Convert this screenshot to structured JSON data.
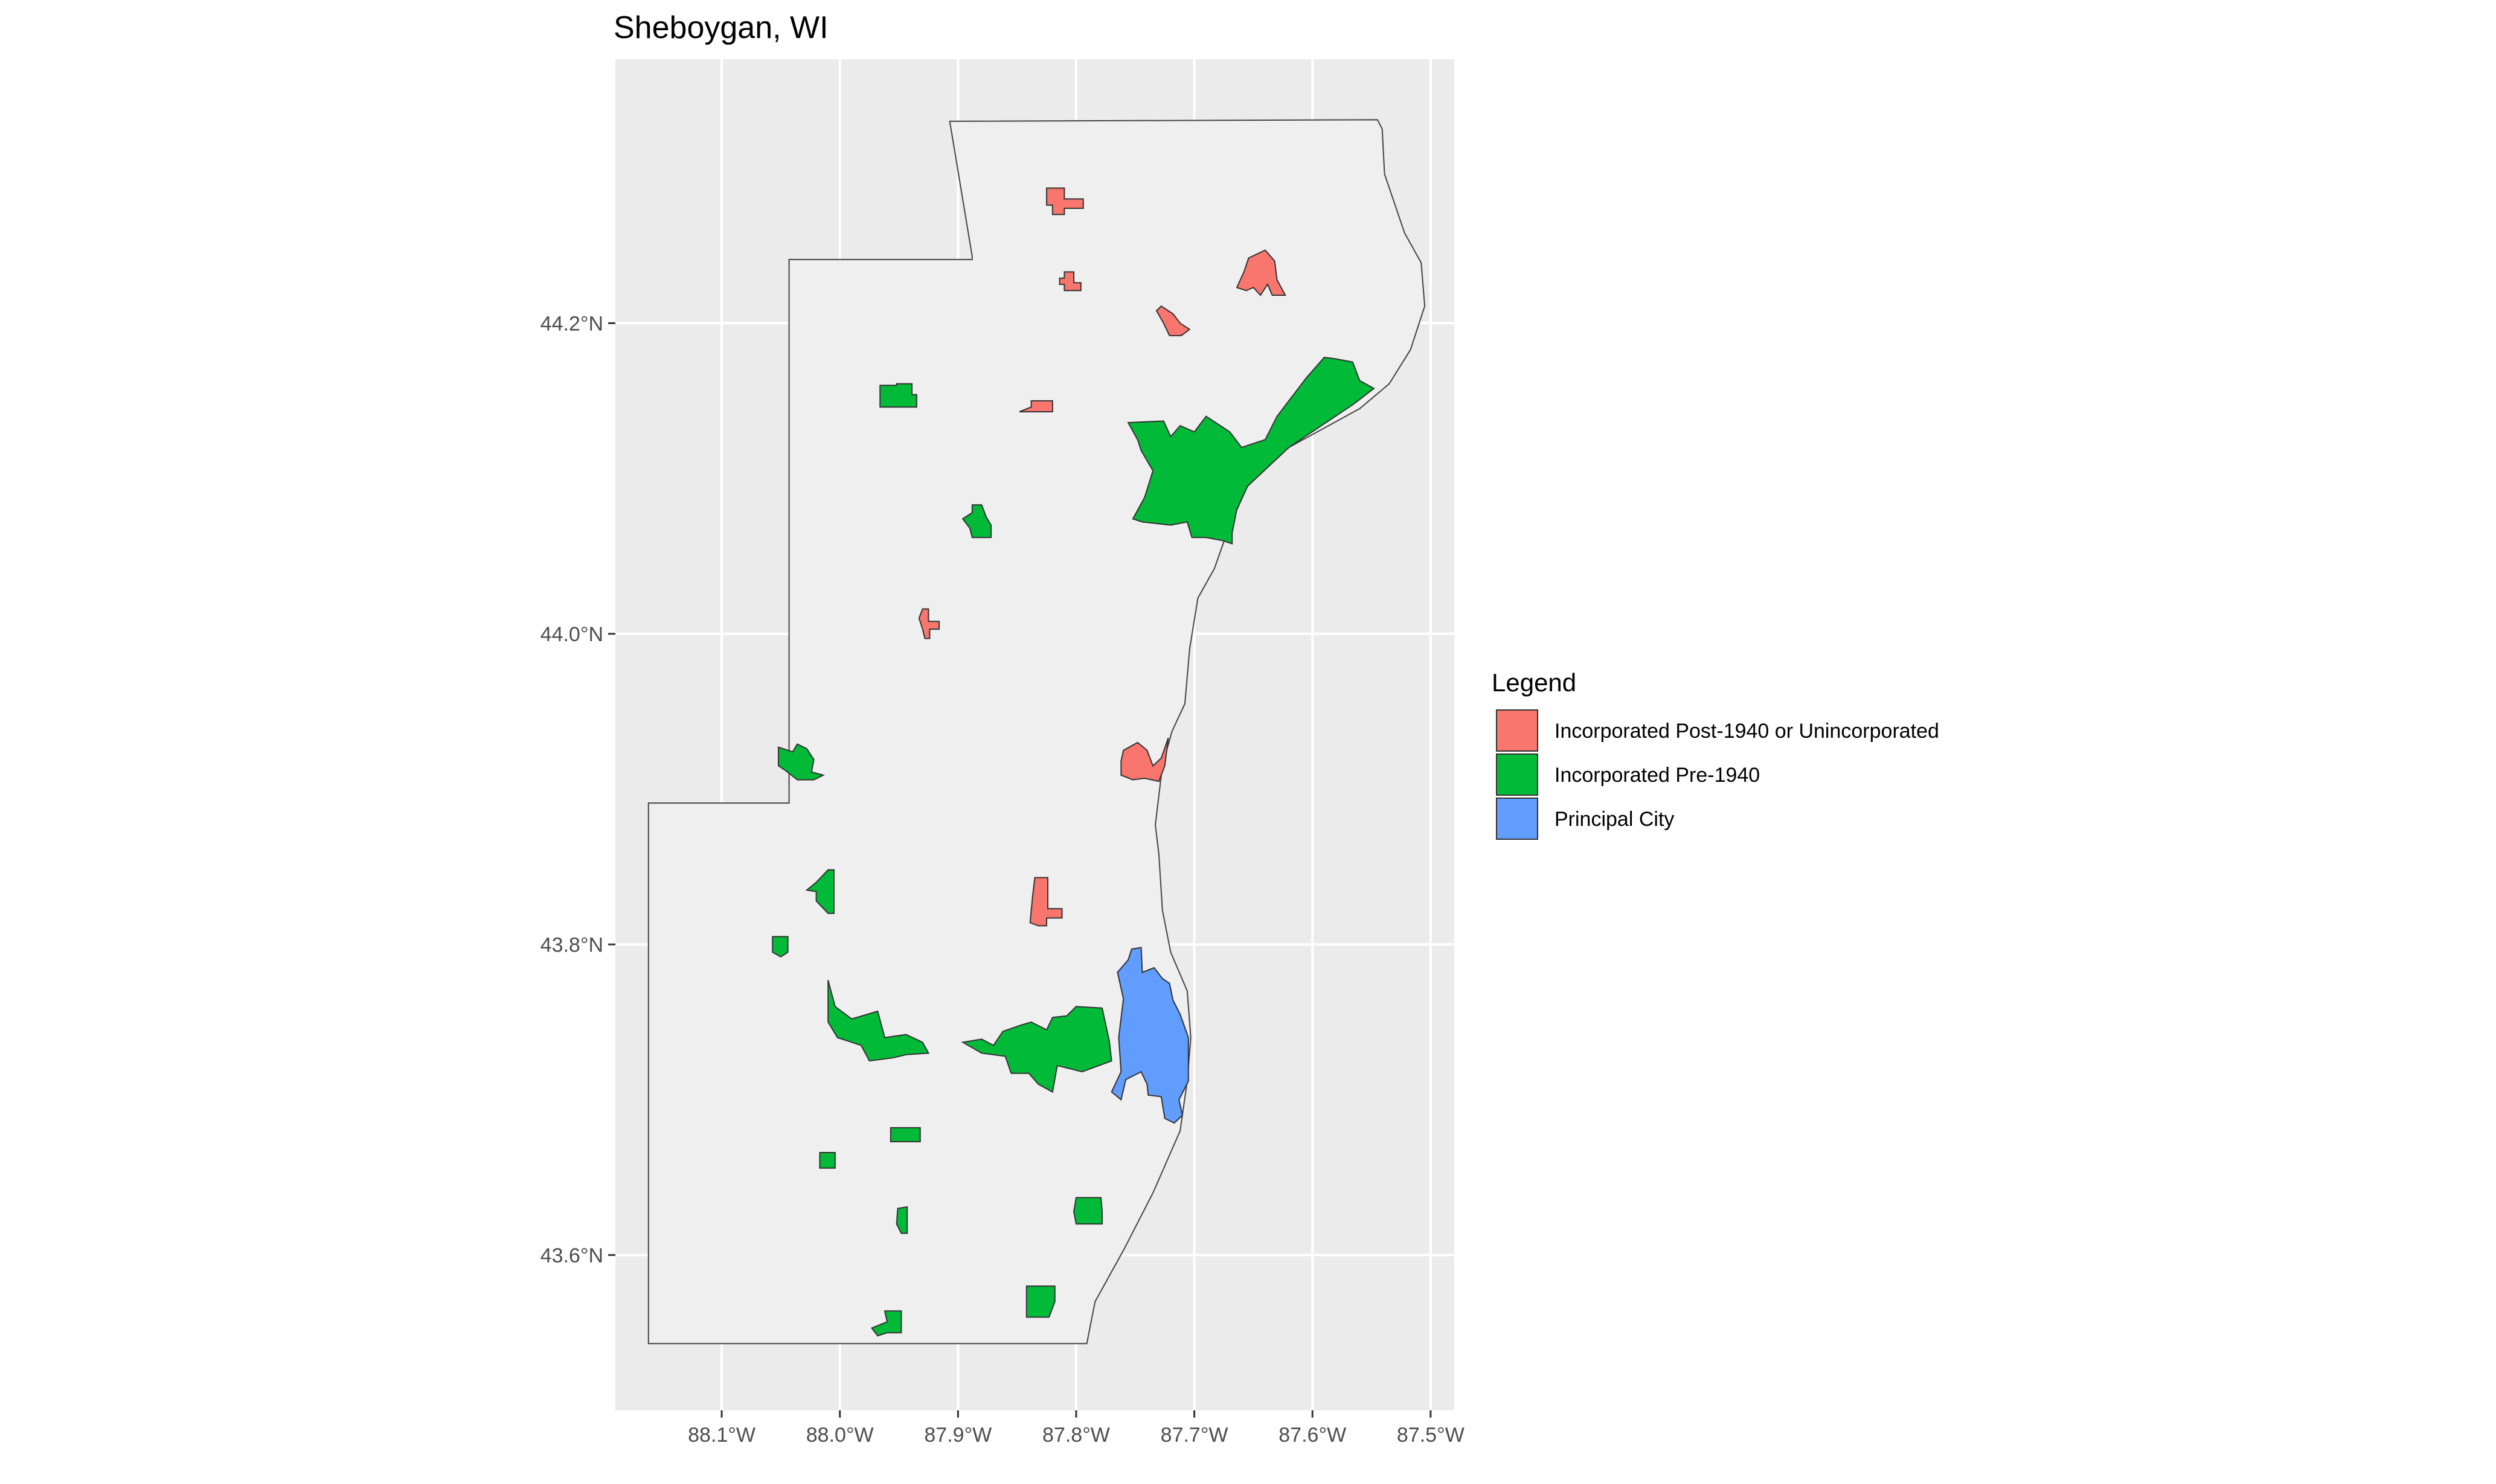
{
  "title": "Sheboygan, WI",
  "colors": {
    "panel": "#ebebeb",
    "county_fill": "#efefef",
    "county_stroke": "#444444",
    "post1940": "#f8766d",
    "pre1940": "#00ba38",
    "principal": "#619cff"
  },
  "axes": {
    "x_range": [
      -88.19,
      -87.48
    ],
    "y_range": [
      43.5,
      44.37
    ],
    "x_ticks": [
      {
        "value": -88.1,
        "label": "88.1°W"
      },
      {
        "value": -88.0,
        "label": "88.0°W"
      },
      {
        "value": -87.9,
        "label": "87.9°W"
      },
      {
        "value": -87.8,
        "label": "87.8°W"
      },
      {
        "value": -87.7,
        "label": "87.7°W"
      },
      {
        "value": -87.6,
        "label": "87.6°W"
      },
      {
        "value": -87.5,
        "label": "87.5°W"
      }
    ],
    "y_ticks": [
      {
        "value": 44.2,
        "label": "44.2°N"
      },
      {
        "value": 44.0,
        "label": "44.0°N"
      },
      {
        "value": 43.8,
        "label": "43.8°N"
      },
      {
        "value": 43.6,
        "label": "43.6°N"
      }
    ]
  },
  "legend": {
    "title": "Legend",
    "items": [
      {
        "key": "post1940",
        "label": "Incorporated Post-1940 or Unincorporated"
      },
      {
        "key": "pre1940",
        "label": "Incorporated Pre-1940"
      },
      {
        "key": "principal",
        "label": "Principal City"
      }
    ]
  },
  "county_boundary": [
    [
      -87.907,
      44.33
    ],
    [
      -87.545,
      44.331
    ],
    [
      -87.541,
      44.325
    ],
    [
      -87.539,
      44.296
    ],
    [
      -87.522,
      44.258
    ],
    [
      -87.508,
      44.239
    ],
    [
      -87.505,
      44.211
    ],
    [
      -87.517,
      44.183
    ],
    [
      -87.535,
      44.161
    ],
    [
      -87.56,
      44.145
    ],
    [
      -87.62,
      44.12
    ],
    [
      -87.655,
      44.095
    ],
    [
      -87.671,
      44.068
    ],
    [
      -87.683,
      44.042
    ],
    [
      -87.697,
      44.023
    ],
    [
      -87.704,
      43.99
    ],
    [
      -87.708,
      43.955
    ],
    [
      -87.719,
      43.937
    ],
    [
      -87.727,
      43.915
    ],
    [
      -87.733,
      43.877
    ],
    [
      -87.73,
      43.858
    ],
    [
      -87.727,
      43.822
    ],
    [
      -87.72,
      43.795
    ],
    [
      -87.706,
      43.77
    ],
    [
      -87.703,
      43.74
    ],
    [
      -87.706,
      43.712
    ],
    [
      -87.712,
      43.68
    ],
    [
      -87.735,
      43.64
    ],
    [
      -87.76,
      43.603
    ],
    [
      -87.784,
      43.57
    ],
    [
      -87.791,
      43.543
    ],
    [
      -88.162,
      43.543
    ],
    [
      -88.162,
      43.891
    ],
    [
      -88.043,
      43.891
    ],
    [
      -88.043,
      44.241
    ],
    [
      -87.888,
      44.241
    ],
    [
      -87.888,
      44.243
    ]
  ],
  "places": [
    {
      "cat": "post1940",
      "poly": [
        [
          -87.825,
          44.287
        ],
        [
          -87.81,
          44.287
        ],
        [
          -87.81,
          44.28
        ],
        [
          -87.794,
          44.28
        ],
        [
          -87.794,
          44.274
        ],
        [
          -87.81,
          44.274
        ],
        [
          -87.81,
          44.27
        ],
        [
          -87.82,
          44.27
        ],
        [
          -87.82,
          44.276
        ],
        [
          -87.825,
          44.276
        ]
      ]
    },
    {
      "cat": "post1940",
      "poly": [
        [
          -87.81,
          44.233
        ],
        [
          -87.802,
          44.233
        ],
        [
          -87.802,
          44.226
        ],
        [
          -87.796,
          44.226
        ],
        [
          -87.796,
          44.221
        ],
        [
          -87.81,
          44.221
        ],
        [
          -87.81,
          44.225
        ],
        [
          -87.814,
          44.225
        ],
        [
          -87.814,
          44.229
        ],
        [
          -87.81,
          44.229
        ]
      ]
    },
    {
      "cat": "post1940",
      "poly": [
        [
          -87.654,
          44.242
        ],
        [
          -87.64,
          44.247
        ],
        [
          -87.632,
          44.24
        ],
        [
          -87.63,
          44.228
        ],
        [
          -87.623,
          44.218
        ],
        [
          -87.634,
          44.218
        ],
        [
          -87.638,
          44.225
        ],
        [
          -87.644,
          44.218
        ],
        [
          -87.65,
          44.223
        ],
        [
          -87.656,
          44.221
        ],
        [
          -87.664,
          44.223
        ],
        [
          -87.658,
          44.233
        ]
      ]
    },
    {
      "cat": "post1940",
      "poly": [
        [
          -87.728,
          44.211
        ],
        [
          -87.718,
          44.206
        ],
        [
          -87.712,
          44.2
        ],
        [
          -87.704,
          44.196
        ],
        [
          -87.711,
          44.192
        ],
        [
          -87.721,
          44.192
        ],
        [
          -87.726,
          44.2
        ],
        [
          -87.732,
          44.208
        ]
      ]
    },
    {
      "cat": "post1940",
      "poly": [
        [
          -87.838,
          44.15
        ],
        [
          -87.82,
          44.15
        ],
        [
          -87.82,
          44.143
        ],
        [
          -87.848,
          44.143
        ],
        [
          -87.838,
          44.146
        ]
      ]
    },
    {
      "cat": "post1940",
      "poly": [
        [
          -87.93,
          44.016
        ],
        [
          -87.925,
          44.016
        ],
        [
          -87.925,
          44.008
        ],
        [
          -87.916,
          44.008
        ],
        [
          -87.916,
          44.003
        ],
        [
          -87.924,
          44.003
        ],
        [
          -87.924,
          43.997
        ],
        [
          -87.928,
          43.997
        ],
        [
          -87.93,
          44.003
        ],
        [
          -87.933,
          44.01
        ]
      ]
    },
    {
      "cat": "post1940",
      "poly": [
        [
          -87.76,
          43.925
        ],
        [
          -87.748,
          43.93
        ],
        [
          -87.74,
          43.925
        ],
        [
          -87.735,
          43.915
        ],
        [
          -87.728,
          43.92
        ],
        [
          -87.722,
          43.933
        ],
        [
          -87.725,
          43.915
        ],
        [
          -87.73,
          43.905
        ],
        [
          -87.742,
          43.907
        ],
        [
          -87.752,
          43.906
        ],
        [
          -87.762,
          43.909
        ],
        [
          -87.762,
          43.918
        ]
      ]
    },
    {
      "cat": "post1940",
      "poly": [
        [
          -87.835,
          43.843
        ],
        [
          -87.824,
          43.843
        ],
        [
          -87.824,
          43.823
        ],
        [
          -87.812,
          43.823
        ],
        [
          -87.812,
          43.817
        ],
        [
          -87.825,
          43.817
        ],
        [
          -87.825,
          43.812
        ],
        [
          -87.832,
          43.812
        ],
        [
          -87.839,
          43.814
        ],
        [
          -87.837,
          43.83
        ]
      ]
    },
    {
      "cat": "pre1940",
      "poly": [
        [
          -87.952,
          44.161
        ],
        [
          -87.939,
          44.161
        ],
        [
          -87.939,
          44.154
        ],
        [
          -87.935,
          44.154
        ],
        [
          -87.935,
          44.146
        ],
        [
          -87.966,
          44.146
        ],
        [
          -87.966,
          44.16
        ],
        [
          -87.952,
          44.16
        ]
      ]
    },
    {
      "cat": "pre1940",
      "poly": [
        [
          -87.888,
          44.083
        ],
        [
          -87.88,
          44.083
        ],
        [
          -87.876,
          44.075
        ],
        [
          -87.872,
          44.07
        ],
        [
          -87.872,
          44.062
        ],
        [
          -87.888,
          44.062
        ],
        [
          -87.89,
          44.068
        ],
        [
          -87.896,
          44.074
        ],
        [
          -87.888,
          44.078
        ]
      ]
    },
    {
      "cat": "pre1940",
      "poly": [
        [
          -87.756,
          44.136
        ],
        [
          -87.726,
          44.137
        ],
        [
          -87.72,
          44.127
        ],
        [
          -87.712,
          44.134
        ],
        [
          -87.7,
          44.13
        ],
        [
          -87.69,
          44.14
        ],
        [
          -87.67,
          44.13
        ],
        [
          -87.66,
          44.12
        ],
        [
          -87.64,
          44.125
        ],
        [
          -87.63,
          44.14
        ],
        [
          -87.615,
          44.155
        ],
        [
          -87.605,
          44.165
        ],
        [
          -87.59,
          44.178
        ],
        [
          -87.58,
          44.177
        ],
        [
          -87.566,
          44.175
        ],
        [
          -87.56,
          44.163
        ],
        [
          -87.548,
          44.158
        ],
        [
          -87.565,
          44.148
        ],
        [
          -87.62,
          44.12
        ],
        [
          -87.655,
          44.095
        ],
        [
          -87.664,
          44.08
        ],
        [
          -87.668,
          44.065
        ],
        [
          -87.668,
          44.058
        ],
        [
          -87.676,
          44.06
        ],
        [
          -87.69,
          44.062
        ],
        [
          -87.702,
          44.062
        ],
        [
          -87.706,
          44.072
        ],
        [
          -87.72,
          44.07
        ],
        [
          -87.744,
          44.072
        ],
        [
          -87.752,
          44.074
        ],
        [
          -87.742,
          44.088
        ],
        [
          -87.735,
          44.105
        ],
        [
          -87.745,
          44.118
        ],
        [
          -87.748,
          44.125
        ]
      ]
    },
    {
      "cat": "pre1940",
      "poly": [
        [
          -88.052,
          43.927
        ],
        [
          -88.04,
          43.924
        ],
        [
          -88.036,
          43.929
        ],
        [
          -88.028,
          43.926
        ],
        [
          -88.022,
          43.919
        ],
        [
          -88.024,
          43.911
        ],
        [
          -88.014,
          43.909
        ],
        [
          -88.022,
          43.906
        ],
        [
          -88.036,
          43.906
        ],
        [
          -88.046,
          43.912
        ],
        [
          -88.052,
          43.915
        ]
      ]
    },
    {
      "cat": "pre1940",
      "poly": [
        [
          -88.01,
          43.848
        ],
        [
          -88.005,
          43.848
        ],
        [
          -88.005,
          43.82
        ],
        [
          -88.01,
          43.82
        ],
        [
          -88.02,
          43.828
        ],
        [
          -88.02,
          43.834
        ],
        [
          -88.028,
          43.835
        ],
        [
          -88.02,
          43.84
        ]
      ]
    },
    {
      "cat": "pre1940",
      "poly": [
        [
          -88.057,
          43.805
        ],
        [
          -88.044,
          43.805
        ],
        [
          -88.044,
          43.795
        ],
        [
          -88.05,
          43.792
        ],
        [
          -88.057,
          43.795
        ]
      ]
    },
    {
      "cat": "pre1940",
      "poly": [
        [
          -88.01,
          43.777
        ],
        [
          -88.004,
          43.76
        ],
        [
          -87.99,
          43.752
        ],
        [
          -87.968,
          43.757
        ],
        [
          -87.962,
          43.74
        ],
        [
          -87.944,
          43.742
        ],
        [
          -87.93,
          43.737
        ],
        [
          -87.925,
          43.73
        ],
        [
          -87.944,
          43.729
        ],
        [
          -87.955,
          43.727
        ],
        [
          -87.975,
          43.725
        ],
        [
          -87.982,
          43.735
        ],
        [
          -88.002,
          43.74
        ],
        [
          -88.01,
          43.75
        ]
      ]
    },
    {
      "cat": "pre1940",
      "poly": [
        [
          -87.896,
          43.737
        ],
        [
          -87.88,
          43.739
        ],
        [
          -87.87,
          43.735
        ],
        [
          -87.862,
          43.744
        ],
        [
          -87.847,
          43.748
        ],
        [
          -87.838,
          43.75
        ],
        [
          -87.825,
          43.745
        ],
        [
          -87.82,
          43.753
        ],
        [
          -87.808,
          43.754
        ],
        [
          -87.8,
          43.76
        ],
        [
          -87.778,
          43.759
        ],
        [
          -87.772,
          43.738
        ],
        [
          -87.77,
          43.725
        ],
        [
          -87.795,
          43.718
        ],
        [
          -87.816,
          43.722
        ],
        [
          -87.82,
          43.705
        ],
        [
          -87.832,
          43.71
        ],
        [
          -87.84,
          43.717
        ],
        [
          -87.855,
          43.717
        ],
        [
          -87.86,
          43.728
        ],
        [
          -87.88,
          43.73
        ]
      ]
    },
    {
      "cat": "pre1940",
      "poly": [
        [
          -87.957,
          43.682
        ],
        [
          -87.932,
          43.682
        ],
        [
          -87.932,
          43.673
        ],
        [
          -87.957,
          43.673
        ]
      ]
    },
    {
      "cat": "pre1940",
      "poly": [
        [
          -88.017,
          43.666
        ],
        [
          -88.004,
          43.666
        ],
        [
          -88.004,
          43.656
        ],
        [
          -88.017,
          43.656
        ]
      ]
    },
    {
      "cat": "pre1940",
      "poly": [
        [
          -87.951,
          43.63
        ],
        [
          -87.943,
          43.631
        ],
        [
          -87.943,
          43.614
        ],
        [
          -87.948,
          43.614
        ],
        [
          -87.952,
          43.62
        ]
      ]
    },
    {
      "cat": "pre1940",
      "poly": [
        [
          -87.8,
          43.637
        ],
        [
          -87.779,
          43.637
        ],
        [
          -87.778,
          43.628
        ],
        [
          -87.778,
          43.62
        ],
        [
          -87.8,
          43.62
        ],
        [
          -87.802,
          43.628
        ]
      ]
    },
    {
      "cat": "pre1940",
      "poly": [
        [
          -87.842,
          43.58
        ],
        [
          -87.818,
          43.58
        ],
        [
          -87.818,
          43.57
        ],
        [
          -87.823,
          43.56
        ],
        [
          -87.842,
          43.56
        ]
      ]
    },
    {
      "cat": "pre1940",
      "poly": [
        [
          -87.962,
          43.564
        ],
        [
          -87.948,
          43.564
        ],
        [
          -87.948,
          43.55
        ],
        [
          -87.96,
          43.55
        ],
        [
          -87.968,
          43.548
        ],
        [
          -87.973,
          43.553
        ],
        [
          -87.96,
          43.557
        ]
      ]
    },
    {
      "cat": "principal",
      "poly": [
        [
          -87.753,
          43.797
        ],
        [
          -87.745,
          43.798
        ],
        [
          -87.744,
          43.782
        ],
        [
          -87.734,
          43.785
        ],
        [
          -87.727,
          43.778
        ],
        [
          -87.721,
          43.775
        ],
        [
          -87.718,
          43.764
        ],
        [
          -87.712,
          43.755
        ],
        [
          -87.705,
          43.74
        ],
        [
          -87.705,
          43.712
        ],
        [
          -87.713,
          43.7
        ],
        [
          -87.71,
          43.69
        ],
        [
          -87.717,
          43.685
        ],
        [
          -87.725,
          43.688
        ],
        [
          -87.728,
          43.702
        ],
        [
          -87.739,
          43.703
        ],
        [
          -87.74,
          43.71
        ],
        [
          -87.745,
          43.718
        ],
        [
          -87.758,
          43.713
        ],
        [
          -87.762,
          43.7
        ],
        [
          -87.77,
          43.705
        ],
        [
          -87.762,
          43.718
        ],
        [
          -87.764,
          43.74
        ],
        [
          -87.76,
          43.765
        ],
        [
          -87.765,
          43.782
        ],
        [
          -87.756,
          43.79
        ]
      ]
    }
  ]
}
